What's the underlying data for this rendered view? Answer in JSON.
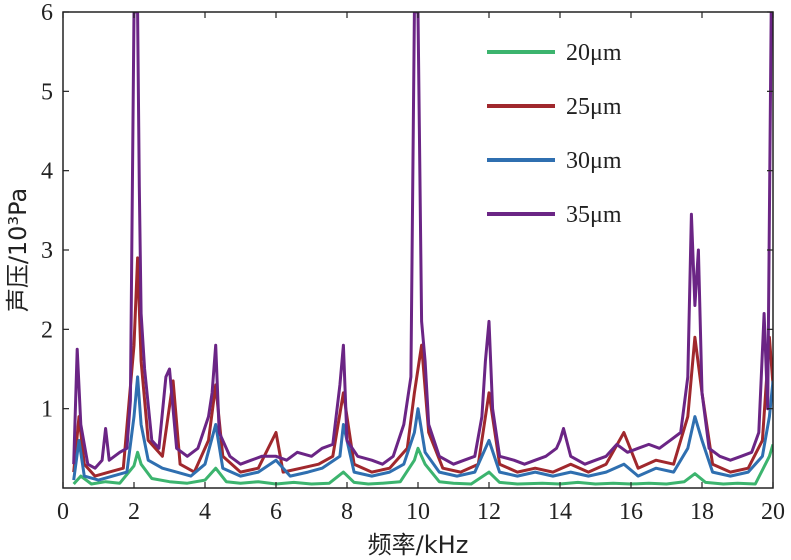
{
  "chart_data": {
    "type": "line",
    "xlabel": "频率/kHz",
    "ylabel": "声压/10³Pa",
    "xlim": [
      0,
      20
    ],
    "ylim": [
      0,
      6
    ],
    "xticks": [
      0,
      2,
      4,
      6,
      8,
      10,
      12,
      14,
      16,
      18,
      20
    ],
    "yticks": [
      1,
      2,
      3,
      4,
      5,
      6
    ],
    "grid": false,
    "legend_position": "top-right",
    "series": [
      {
        "name": "20μm",
        "color": "#3cb46e",
        "points": [
          [
            0.3,
            0.05
          ],
          [
            0.5,
            0.15
          ],
          [
            0.8,
            0.05
          ],
          [
            1.2,
            0.08
          ],
          [
            1.6,
            0.06
          ],
          [
            2.0,
            0.28
          ],
          [
            2.1,
            0.45
          ],
          [
            2.2,
            0.3
          ],
          [
            2.5,
            0.12
          ],
          [
            3.0,
            0.08
          ],
          [
            3.5,
            0.06
          ],
          [
            4.0,
            0.1
          ],
          [
            4.3,
            0.25
          ],
          [
            4.6,
            0.08
          ],
          [
            5.0,
            0.06
          ],
          [
            5.5,
            0.08
          ],
          [
            6.0,
            0.05
          ],
          [
            6.5,
            0.07
          ],
          [
            7.0,
            0.05
          ],
          [
            7.5,
            0.06
          ],
          [
            7.9,
            0.2
          ],
          [
            8.2,
            0.07
          ],
          [
            8.6,
            0.05
          ],
          [
            9.0,
            0.06
          ],
          [
            9.5,
            0.08
          ],
          [
            9.9,
            0.35
          ],
          [
            10.0,
            0.5
          ],
          [
            10.2,
            0.3
          ],
          [
            10.6,
            0.08
          ],
          [
            11.0,
            0.06
          ],
          [
            11.5,
            0.05
          ],
          [
            12.0,
            0.2
          ],
          [
            12.3,
            0.07
          ],
          [
            12.8,
            0.05
          ],
          [
            13.5,
            0.06
          ],
          [
            14.0,
            0.05
          ],
          [
            14.5,
            0.07
          ],
          [
            15.0,
            0.05
          ],
          [
            15.5,
            0.06
          ],
          [
            16.0,
            0.05
          ],
          [
            16.5,
            0.06
          ],
          [
            17.0,
            0.05
          ],
          [
            17.5,
            0.08
          ],
          [
            17.8,
            0.18
          ],
          [
            18.1,
            0.07
          ],
          [
            18.6,
            0.05
          ],
          [
            19.0,
            0.06
          ],
          [
            19.5,
            0.05
          ],
          [
            19.9,
            0.4
          ],
          [
            20.0,
            0.55
          ]
        ]
      },
      {
        "name": "25μm",
        "color": "#a0282d",
        "points": [
          [
            0.3,
            0.2
          ],
          [
            0.45,
            0.9
          ],
          [
            0.6,
            0.3
          ],
          [
            0.9,
            0.15
          ],
          [
            1.3,
            0.2
          ],
          [
            1.7,
            0.25
          ],
          [
            2.0,
            1.8
          ],
          [
            2.1,
            2.9
          ],
          [
            2.2,
            1.6
          ],
          [
            2.4,
            0.6
          ],
          [
            2.8,
            0.4
          ],
          [
            3.1,
            1.35
          ],
          [
            3.3,
            0.3
          ],
          [
            3.7,
            0.2
          ],
          [
            4.1,
            0.6
          ],
          [
            4.3,
            1.3
          ],
          [
            4.5,
            0.4
          ],
          [
            5.0,
            0.2
          ],
          [
            5.5,
            0.25
          ],
          [
            6.0,
            0.7
          ],
          [
            6.2,
            0.2
          ],
          [
            6.7,
            0.25
          ],
          [
            7.2,
            0.3
          ],
          [
            7.6,
            0.4
          ],
          [
            7.9,
            1.2
          ],
          [
            8.2,
            0.3
          ],
          [
            8.7,
            0.2
          ],
          [
            9.2,
            0.25
          ],
          [
            9.7,
            0.5
          ],
          [
            9.9,
            1.2
          ],
          [
            10.1,
            1.8
          ],
          [
            10.3,
            0.7
          ],
          [
            10.7,
            0.25
          ],
          [
            11.2,
            0.2
          ],
          [
            11.7,
            0.3
          ],
          [
            12.0,
            1.2
          ],
          [
            12.3,
            0.3
          ],
          [
            12.8,
            0.2
          ],
          [
            13.3,
            0.25
          ],
          [
            13.8,
            0.2
          ],
          [
            14.3,
            0.3
          ],
          [
            14.8,
            0.2
          ],
          [
            15.3,
            0.3
          ],
          [
            15.8,
            0.7
          ],
          [
            16.2,
            0.25
          ],
          [
            16.7,
            0.35
          ],
          [
            17.2,
            0.3
          ],
          [
            17.6,
            0.9
          ],
          [
            17.8,
            1.9
          ],
          [
            18.0,
            1.2
          ],
          [
            18.3,
            0.3
          ],
          [
            18.8,
            0.2
          ],
          [
            19.3,
            0.25
          ],
          [
            19.7,
            0.6
          ],
          [
            19.9,
            1.9
          ],
          [
            20.0,
            1.3
          ]
        ]
      },
      {
        "name": "30μm",
        "color": "#2f6fb0",
        "points": [
          [
            0.3,
            0.1
          ],
          [
            0.45,
            0.6
          ],
          [
            0.6,
            0.15
          ],
          [
            1.0,
            0.1
          ],
          [
            1.4,
            0.15
          ],
          [
            1.8,
            0.2
          ],
          [
            2.0,
            0.9
          ],
          [
            2.1,
            1.4
          ],
          [
            2.2,
            0.8
          ],
          [
            2.4,
            0.35
          ],
          [
            2.8,
            0.25
          ],
          [
            3.2,
            0.2
          ],
          [
            3.6,
            0.15
          ],
          [
            4.0,
            0.3
          ],
          [
            4.3,
            0.8
          ],
          [
            4.5,
            0.25
          ],
          [
            5.0,
            0.15
          ],
          [
            5.5,
            0.2
          ],
          [
            6.0,
            0.35
          ],
          [
            6.4,
            0.15
          ],
          [
            6.9,
            0.2
          ],
          [
            7.3,
            0.25
          ],
          [
            7.8,
            0.4
          ],
          [
            7.9,
            0.8
          ],
          [
            8.2,
            0.2
          ],
          [
            8.7,
            0.15
          ],
          [
            9.2,
            0.2
          ],
          [
            9.6,
            0.3
          ],
          [
            9.9,
            0.7
          ],
          [
            10.0,
            1.0
          ],
          [
            10.2,
            0.45
          ],
          [
            10.6,
            0.2
          ],
          [
            11.1,
            0.15
          ],
          [
            11.6,
            0.2
          ],
          [
            12.0,
            0.6
          ],
          [
            12.3,
            0.2
          ],
          [
            12.8,
            0.15
          ],
          [
            13.3,
            0.2
          ],
          [
            13.8,
            0.15
          ],
          [
            14.3,
            0.2
          ],
          [
            14.8,
            0.15
          ],
          [
            15.3,
            0.2
          ],
          [
            15.8,
            0.3
          ],
          [
            16.2,
            0.15
          ],
          [
            16.7,
            0.25
          ],
          [
            17.2,
            0.2
          ],
          [
            17.6,
            0.5
          ],
          [
            17.8,
            0.9
          ],
          [
            18.0,
            0.6
          ],
          [
            18.3,
            0.2
          ],
          [
            18.8,
            0.15
          ],
          [
            19.3,
            0.2
          ],
          [
            19.7,
            0.4
          ],
          [
            19.9,
            0.9
          ],
          [
            20.0,
            1.35
          ]
        ]
      },
      {
        "name": "35μm",
        "color": "#6b2585",
        "points": [
          [
            0.3,
            0.3
          ],
          [
            0.4,
            1.75
          ],
          [
            0.5,
            0.8
          ],
          [
            0.7,
            0.3
          ],
          [
            0.9,
            0.25
          ],
          [
            1.1,
            0.35
          ],
          [
            1.2,
            0.75
          ],
          [
            1.3,
            0.35
          ],
          [
            1.6,
            0.45
          ],
          [
            1.8,
            0.5
          ],
          [
            1.9,
            1.1
          ],
          [
            2.0,
            6.0
          ],
          [
            2.1,
            6.0
          ],
          [
            2.15,
            3.8
          ],
          [
            2.2,
            2.2
          ],
          [
            2.3,
            1.5
          ],
          [
            2.5,
            0.6
          ],
          [
            2.7,
            0.5
          ],
          [
            2.9,
            1.4
          ],
          [
            3.0,
            1.5
          ],
          [
            3.2,
            0.5
          ],
          [
            3.5,
            0.4
          ],
          [
            3.8,
            0.5
          ],
          [
            4.1,
            0.9
          ],
          [
            4.2,
            1.2
          ],
          [
            4.3,
            1.8
          ],
          [
            4.4,
            0.7
          ],
          [
            4.7,
            0.4
          ],
          [
            5.0,
            0.3
          ],
          [
            5.3,
            0.35
          ],
          [
            5.6,
            0.4
          ],
          [
            6.0,
            0.4
          ],
          [
            6.3,
            0.35
          ],
          [
            6.6,
            0.45
          ],
          [
            7.0,
            0.4
          ],
          [
            7.3,
            0.5
          ],
          [
            7.6,
            0.55
          ],
          [
            7.8,
            1.3
          ],
          [
            7.9,
            1.8
          ],
          [
            8.0,
            0.6
          ],
          [
            8.3,
            0.4
          ],
          [
            8.7,
            0.35
          ],
          [
            9.0,
            0.3
          ],
          [
            9.3,
            0.4
          ],
          [
            9.6,
            0.8
          ],
          [
            9.8,
            1.4
          ],
          [
            9.9,
            6.0
          ],
          [
            10.0,
            6.0
          ],
          [
            10.1,
            2.1
          ],
          [
            10.2,
            1.6
          ],
          [
            10.3,
            0.8
          ],
          [
            10.6,
            0.4
          ],
          [
            11.0,
            0.3
          ],
          [
            11.3,
            0.35
          ],
          [
            11.6,
            0.4
          ],
          [
            11.8,
            0.9
          ],
          [
            11.9,
            1.6
          ],
          [
            12.0,
            2.1
          ],
          [
            12.1,
            1.0
          ],
          [
            12.3,
            0.4
          ],
          [
            12.7,
            0.35
          ],
          [
            13.0,
            0.3
          ],
          [
            13.3,
            0.35
          ],
          [
            13.6,
            0.4
          ],
          [
            13.9,
            0.5
          ],
          [
            14.0,
            0.6
          ],
          [
            14.1,
            0.75
          ],
          [
            14.3,
            0.4
          ],
          [
            14.7,
            0.3
          ],
          [
            15.0,
            0.35
          ],
          [
            15.3,
            0.4
          ],
          [
            15.6,
            0.55
          ],
          [
            15.9,
            0.45
          ],
          [
            16.2,
            0.5
          ],
          [
            16.5,
            0.55
          ],
          [
            16.8,
            0.5
          ],
          [
            17.1,
            0.6
          ],
          [
            17.4,
            0.7
          ],
          [
            17.6,
            1.4
          ],
          [
            17.7,
            3.45
          ],
          [
            17.8,
            2.3
          ],
          [
            17.9,
            3.0
          ],
          [
            18.0,
            1.2
          ],
          [
            18.2,
            0.5
          ],
          [
            18.5,
            0.4
          ],
          [
            18.8,
            0.35
          ],
          [
            19.1,
            0.4
          ],
          [
            19.4,
            0.45
          ],
          [
            19.6,
            0.7
          ],
          [
            19.75,
            2.2
          ],
          [
            19.85,
            1.0
          ],
          [
            19.95,
            6.0
          ],
          [
            20.0,
            6.0
          ]
        ]
      }
    ]
  }
}
